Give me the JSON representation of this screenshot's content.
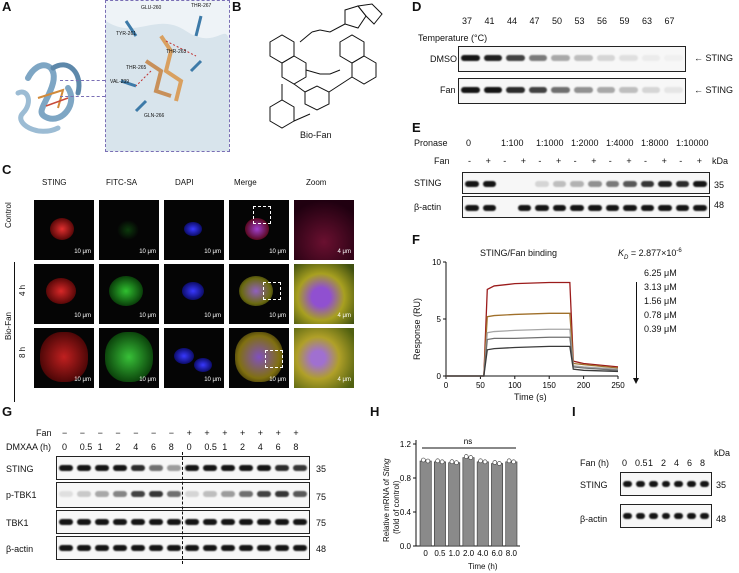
{
  "panels": {
    "A": "A",
    "B": "B",
    "C": "C",
    "D": "D",
    "E": "E",
    "F": "F",
    "G": "G",
    "H": "H",
    "I": "I"
  },
  "panel_a": {
    "residues": [
      "GLU-260",
      "THR-263",
      "TYR-261",
      "THR-267",
      "VAL-239",
      "THR-265",
      "GLN-266"
    ]
  },
  "panel_b": {
    "compound": "Bio-Fan"
  },
  "panel_c": {
    "columns": [
      "STING",
      "FITC-SA",
      "DAPI",
      "Merge",
      "Zoom"
    ],
    "rows": [
      "Control",
      "4 h",
      "8 h"
    ],
    "group": "Bio-Fan",
    "scale": "10 μm",
    "zoom_scale": "4 μm"
  },
  "panel_d": {
    "temp_label": "Temperature (°C)",
    "temps": [
      "37",
      "41",
      "44",
      "47",
      "50",
      "53",
      "56",
      "59",
      "63",
      "67"
    ],
    "rows": [
      "DMSO",
      "Fan"
    ],
    "target": "STING"
  },
  "panel_e": {
    "pronase_label": "Pronase",
    "pronase": [
      "0",
      "1:100",
      "1:1000",
      "1:2000",
      "1:4000",
      "1:8000",
      "1:10000"
    ],
    "fan_label": "Fan",
    "kda": "kDa",
    "rows": [
      "STING",
      "β-actin"
    ],
    "mw": [
      "35",
      "48"
    ],
    "signs": [
      "-",
      "+"
    ]
  },
  "panel_f": {
    "title": "STING/Fan binding",
    "kd": "K",
    "kd_sub": "D",
    "kd_value": " = 2.877×10",
    "kd_exp": "-6",
    "concs": [
      "6.25 μM",
      "3.13 μM",
      "1.56 μM",
      "0.78 μM",
      "0.39 μM"
    ],
    "xlabel": "Time (s)",
    "ylabel": "Response (RU)",
    "xticks": [
      "0",
      "50",
      "100",
      "150",
      "200",
      "250"
    ],
    "yticks": [
      "0",
      "5",
      "10"
    ]
  },
  "panel_g": {
    "fan_label": "Fan",
    "dmxaa_label": "DMXAA (h)",
    "fan_signs": [
      "−",
      "−",
      "−",
      "−",
      "−",
      "−",
      "−",
      "+",
      "+",
      "+",
      "+",
      "+",
      "+",
      "+"
    ],
    "times": [
      "0",
      "0.5",
      "1",
      "2",
      "4",
      "6",
      "8",
      "0",
      "0.5",
      "1",
      "2",
      "4",
      "6",
      "8"
    ],
    "rows": [
      "STING",
      "p-TBK1",
      "TBK1",
      "β-actin"
    ],
    "mw": [
      "35",
      "75",
      "75",
      "48"
    ]
  },
  "panel_h": {
    "ylabel_1": "Relative mRNA of ",
    "ylabel_gene": "Sting",
    "ylabel_2": "(fold of control)",
    "xlabel": "Time (h)",
    "ns": "ns",
    "yticks": [
      "0.0",
      "0.4",
      "0.8",
      "1.2"
    ]
  },
  "panel_i": {
    "fan_label": "Fan (h)",
    "times": [
      "0",
      "0.5",
      "1",
      "2",
      "4",
      "6",
      "8"
    ],
    "kda": "kDa",
    "rows": [
      "STING",
      "β-actin"
    ],
    "mw": [
      "35",
      "48"
    ]
  },
  "chart_data": [
    {
      "type": "line",
      "xlabel": "Time (s)",
      "ylabel": "Response (RU)",
      "xlim": [
        0,
        250
      ],
      "ylim": [
        0,
        10
      ],
      "series": [
        {
          "name": "6.25 μM",
          "color": "#9b1b1b",
          "x": [
            0,
            55,
            60,
            70,
            100,
            150,
            180,
            185,
            200,
            250
          ],
          "y": [
            0,
            0,
            7.6,
            7.9,
            8.1,
            8.2,
            8.2,
            1.3,
            1.1,
            0.8
          ]
        },
        {
          "name": "3.13 μM",
          "color": "#a0702a",
          "x": [
            0,
            55,
            60,
            70,
            100,
            150,
            180,
            185,
            200,
            250
          ],
          "y": [
            0,
            0,
            5.2,
            5.3,
            5.4,
            5.5,
            5.5,
            1.1,
            1.0,
            0.7
          ]
        },
        {
          "name": "1.56 μM",
          "color": "#a6a6a6",
          "x": [
            0,
            55,
            60,
            70,
            100,
            150,
            180,
            185,
            200,
            250
          ],
          "y": [
            0,
            0,
            3.8,
            3.9,
            4.0,
            4.1,
            4.1,
            0.9,
            0.8,
            0.6
          ]
        },
        {
          "name": "0.78 μM",
          "color": "#707070",
          "x": [
            0,
            55,
            60,
            70,
            100,
            150,
            180,
            185,
            200,
            250
          ],
          "y": [
            0,
            0,
            3.2,
            3.3,
            3.3,
            3.4,
            3.4,
            0.8,
            0.7,
            0.5
          ]
        },
        {
          "name": "0.39 μM",
          "color": "#3a3a3a",
          "x": [
            0,
            55,
            60,
            70,
            100,
            150,
            180,
            185,
            200,
            250
          ],
          "y": [
            0,
            0,
            2.3,
            2.4,
            2.5,
            2.6,
            2.6,
            0.6,
            0.5,
            0.4
          ]
        }
      ]
    },
    {
      "type": "bar",
      "categories": [
        "0",
        "0.5",
        "1.0",
        "2.0",
        "4.0",
        "6.0",
        "8.0"
      ],
      "values": [
        1.0,
        0.99,
        0.98,
        1.04,
        0.99,
        0.97,
        0.99
      ],
      "xlabel": "Time (h)",
      "ylim": [
        0,
        1.2
      ]
    }
  ]
}
